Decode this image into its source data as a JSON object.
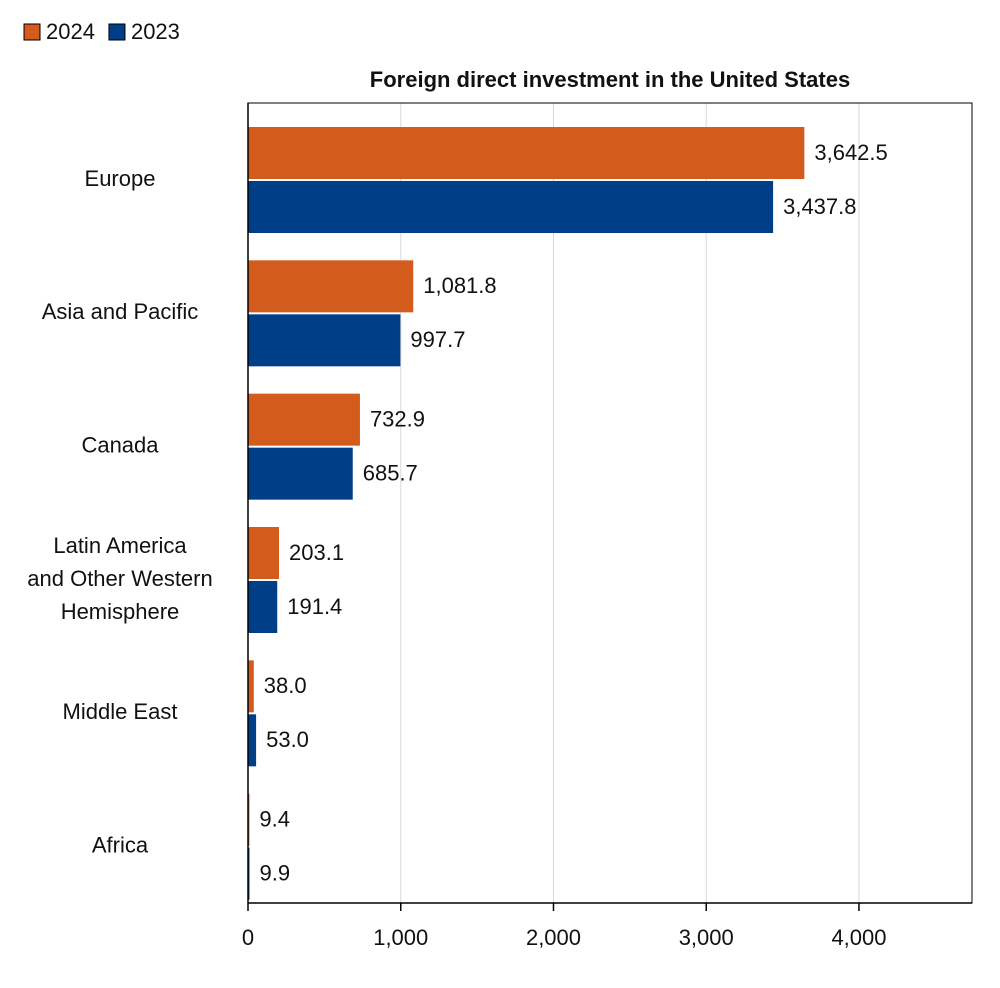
{
  "chart_data": {
    "type": "hbar",
    "title": "Foreign direct investment in the United States",
    "categories": [
      "Europe",
      "Asia and Pacific",
      "Canada",
      "Latin America\nand Other Western\nHemisphere",
      "Middle East",
      "Africa"
    ],
    "series": [
      {
        "name": "2024",
        "color": "#d35b1c",
        "values": [
          3642.5,
          1081.8,
          732.9,
          203.1,
          38.0,
          9.4
        ],
        "value_labels": [
          "3,642.5",
          "1,081.8",
          "732.9",
          "203.1",
          "38.0",
          "9.4"
        ]
      },
      {
        "name": "2023",
        "color": "#003f87",
        "values": [
          3437.8,
          997.7,
          685.7,
          191.4,
          53.0,
          9.9
        ],
        "value_labels": [
          "3,437.8",
          "997.7",
          "685.7",
          "191.4",
          "53.0",
          "9.9"
        ]
      }
    ],
    "xlim": [
      0,
      4740
    ],
    "xticks": [
      0,
      {
        "value": 1000,
        "label": "1,000"
      },
      {
        "value": 2000,
        "label": "2,000"
      },
      {
        "value": 3000,
        "label": "3,000"
      },
      {
        "value": 4000,
        "label": "4,000"
      }
    ],
    "grid": true,
    "legend": "top-left"
  }
}
